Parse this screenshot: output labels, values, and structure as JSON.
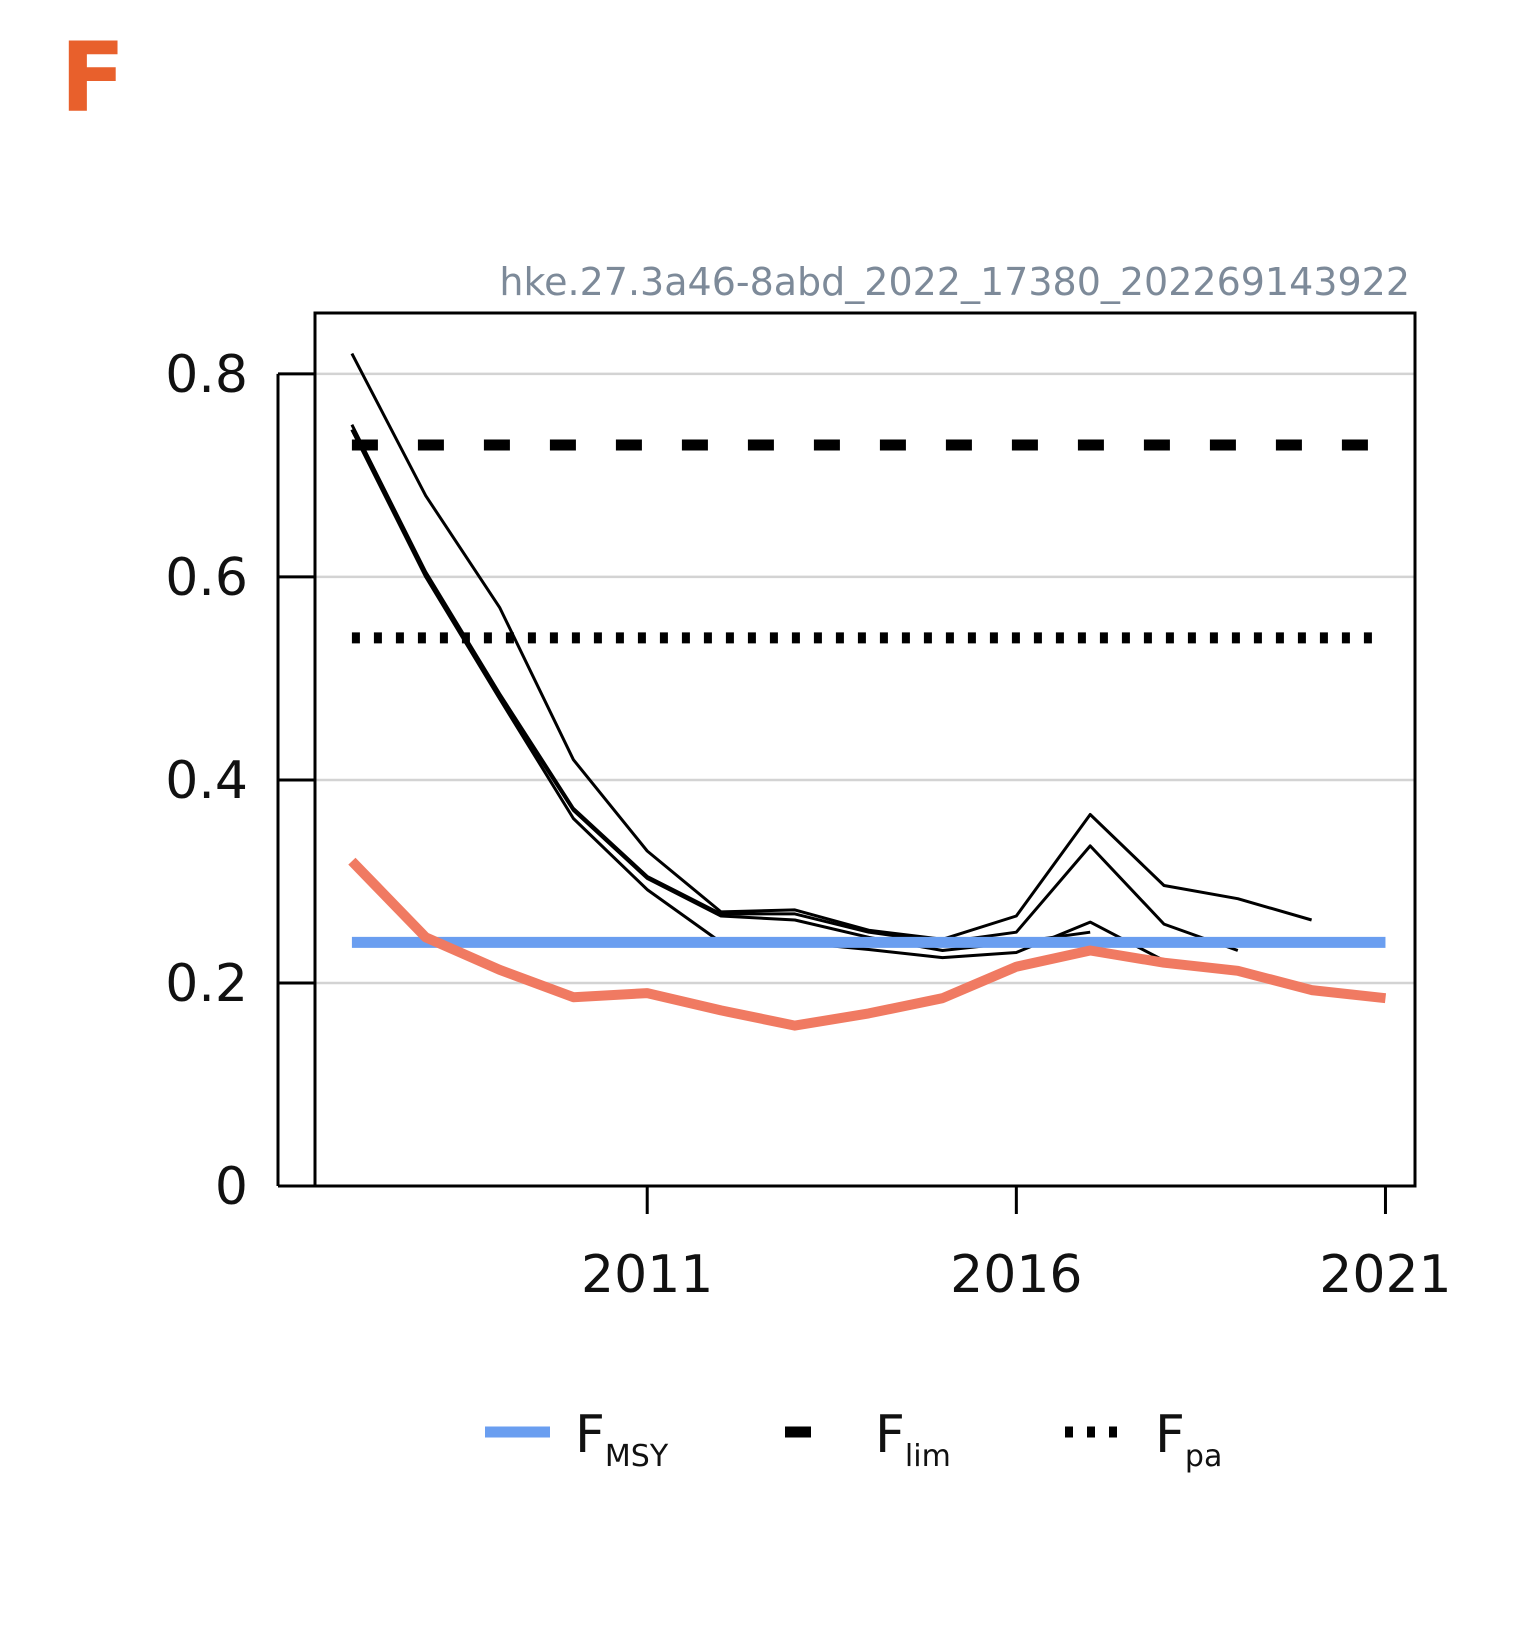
{
  "panel_label": "F",
  "chart_id": "hke.27.3a46-8abd_2022_17380_202269143922",
  "colors": {
    "panel_label": "#e8602c",
    "f_series": "#f07a62",
    "fmsy": "#6a9ef0",
    "retro": "#000000",
    "grid": "#d3d3d3",
    "id_text": "#7d8a99"
  },
  "chart_data": {
    "type": "line",
    "title": "",
    "xlabel": "",
    "ylabel": "",
    "xlim": [
      2006.5,
      2021.4
    ],
    "ylim": [
      0,
      0.86
    ],
    "x_ticks": [
      2011,
      2016,
      2021
    ],
    "y_ticks": [
      0,
      0.2,
      0.4,
      0.6,
      0.8
    ],
    "y_tick_labels": [
      "0",
      "0.2",
      "0.4",
      "0.6",
      "0.8"
    ],
    "grid": "horizontal",
    "legend_position": "bottom",
    "series": [
      {
        "style": "thick-salmon",
        "x": [
          2007,
          2008,
          2009,
          2010,
          2011,
          2012,
          2013,
          2014,
          2015,
          2016,
          2017,
          2018,
          2019,
          2020,
          2021
        ],
        "values": [
          0.32,
          0.245,
          0.213,
          0.186,
          0.19,
          0.173,
          0.158,
          0.17,
          0.185,
          0.216,
          0.232,
          0.22,
          0.212,
          0.193,
          0.185
        ]
      },
      {
        "style": "retro",
        "x": [
          2007,
          2008,
          2009,
          2010,
          2011,
          2012,
          2013,
          2014,
          2015,
          2016,
          2017,
          2018,
          2019,
          2020
        ],
        "values": [
          0.82,
          0.68,
          0.57,
          0.42,
          0.33,
          0.27,
          0.272,
          0.252,
          0.243,
          0.266,
          0.366,
          0.296,
          0.283,
          0.262
        ]
      },
      {
        "style": "retro",
        "x": [
          2007,
          2008,
          2009,
          2010,
          2011,
          2012,
          2013,
          2014,
          2015,
          2016,
          2017,
          2018,
          2019
        ],
        "values": [
          0.75,
          0.605,
          0.485,
          0.372,
          0.305,
          0.268,
          0.268,
          0.25,
          0.24,
          0.25,
          0.335,
          0.258,
          0.232
        ]
      },
      {
        "style": "retro",
        "x": [
          2007,
          2008,
          2009,
          2010,
          2011,
          2012,
          2013,
          2014,
          2015,
          2016,
          2017,
          2018
        ],
        "values": [
          0.745,
          0.6,
          0.48,
          0.362,
          0.292,
          0.24,
          0.24,
          0.233,
          0.225,
          0.23,
          0.26,
          0.222
        ]
      },
      {
        "style": "retro",
        "x": [
          2007,
          2008,
          2009,
          2010,
          2011,
          2012,
          2013,
          2014,
          2015,
          2016,
          2017
        ],
        "values": [
          0.745,
          0.603,
          0.482,
          0.37,
          0.303,
          0.266,
          0.262,
          0.245,
          0.232,
          0.24,
          0.25
        ]
      }
    ],
    "reference_lines": [
      {
        "key": "fmsy",
        "style": "solid-blue",
        "value": 0.24,
        "x": [
          2007,
          2021
        ]
      },
      {
        "key": "flim",
        "style": "dashed-black",
        "value": 0.73,
        "x": [
          2007,
          2021
        ]
      },
      {
        "key": "fpa",
        "style": "dotted-black",
        "value": 0.54,
        "x": [
          2007,
          2021
        ]
      }
    ],
    "legend": [
      {
        "key": "fmsy",
        "main": "F",
        "sub": "MSY",
        "style": "solid-blue"
      },
      {
        "key": "flim",
        "main": "F",
        "sub": "lim",
        "style": "dashed-black"
      },
      {
        "key": "fpa",
        "main": "F",
        "sub": "pa",
        "style": "dotted-black"
      }
    ]
  }
}
